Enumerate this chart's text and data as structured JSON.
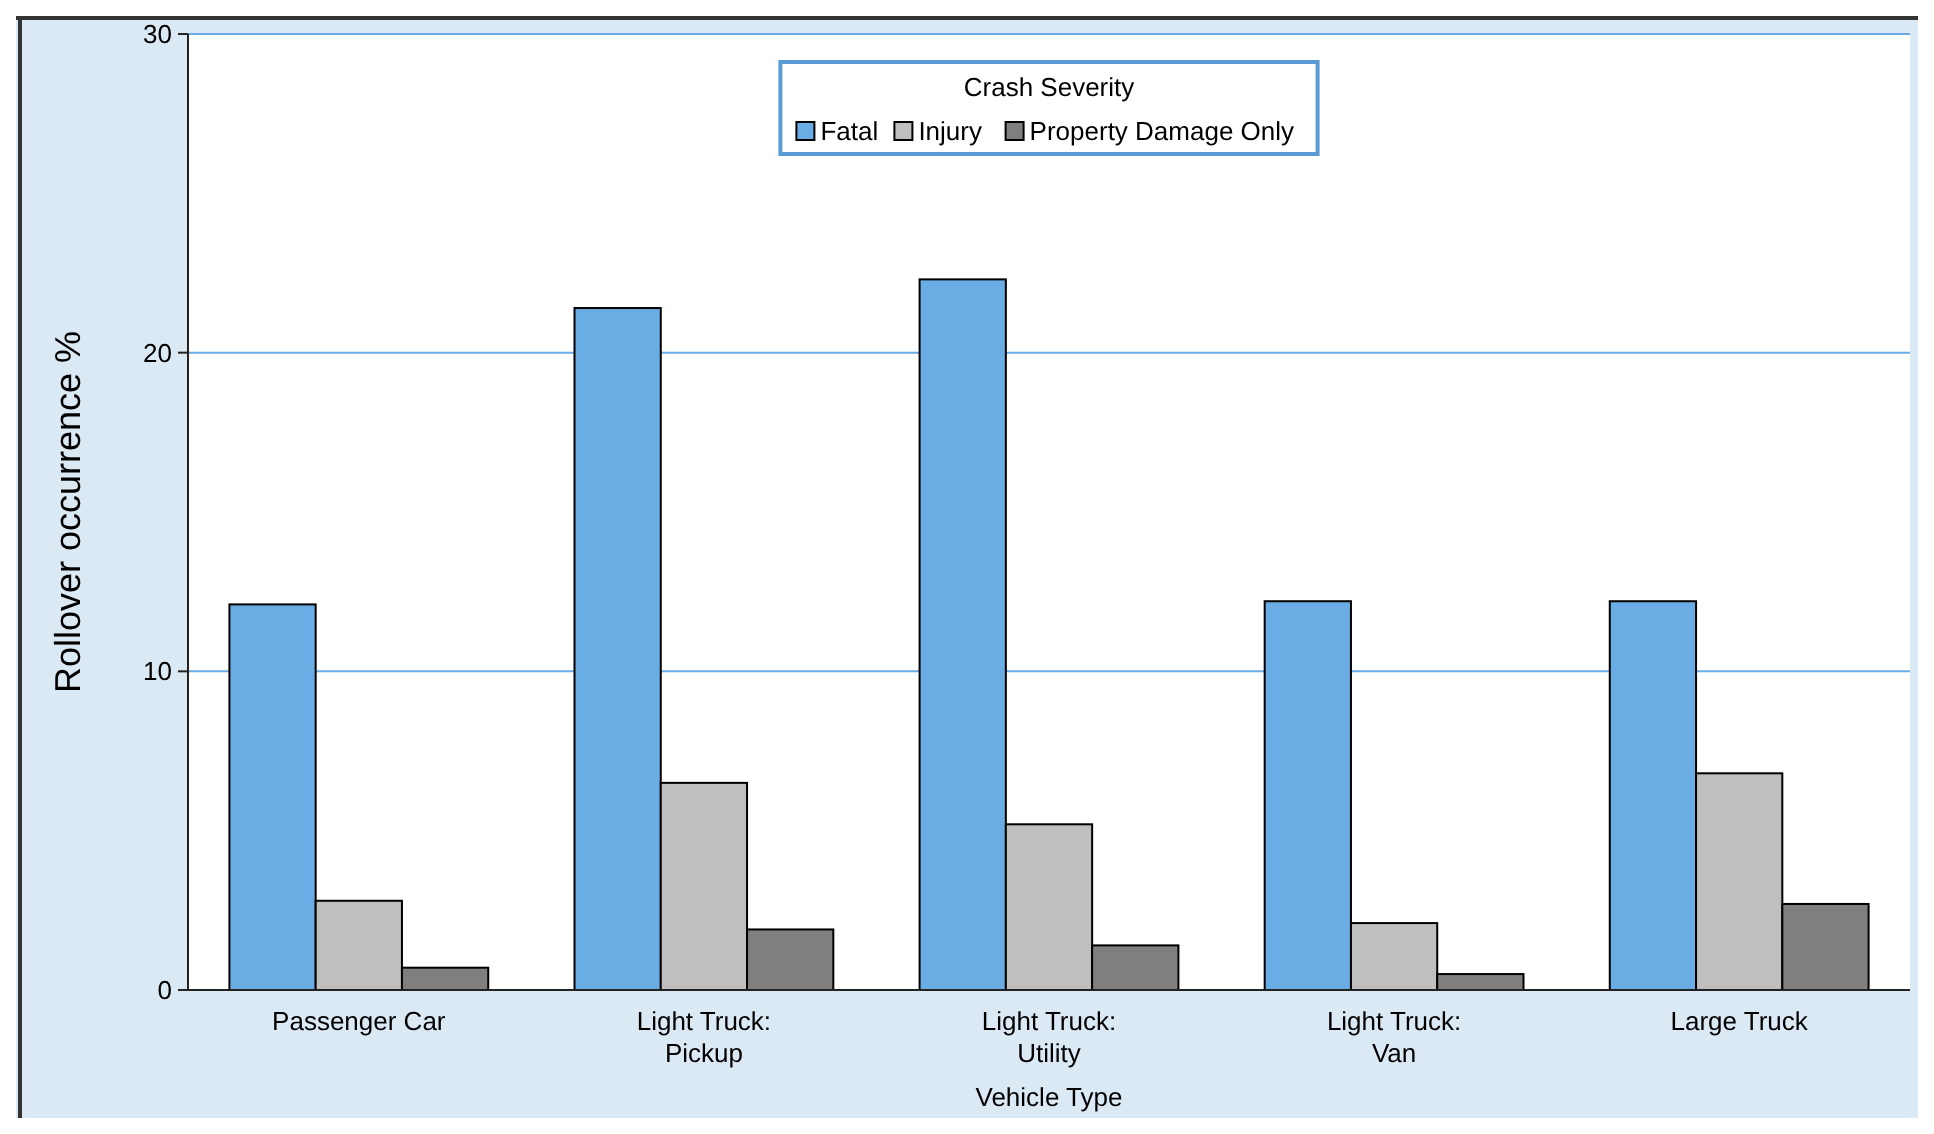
{
  "chart_data": {
    "type": "bar",
    "xlabel": "Vehicle Type",
    "ylabel": "Rollover occurrence %",
    "legend_title": "Crash Severity",
    "legend": "top",
    "grid": "y",
    "categories": [
      "Passenger Car",
      "Light Truck: Pickup",
      "Light Truck: Utility",
      "Light Truck: Van",
      "Large Truck"
    ],
    "ylim": [
      0,
      30
    ],
    "yticks": [
      0,
      10,
      20,
      30
    ],
    "series": [
      {
        "name": "Fatal",
        "color": "#6aade4",
        "values": [
          12.1,
          21.4,
          22.3,
          12.2,
          12.2
        ]
      },
      {
        "name": "Injury",
        "color": "#bfbfbf",
        "values": [
          2.8,
          6.5,
          5.2,
          2.1,
          6.8
        ]
      },
      {
        "name": "Property Damage Only",
        "color": "#7f7f7f",
        "values": [
          0.7,
          1.9,
          1.4,
          0.5,
          2.7
        ]
      }
    ]
  }
}
